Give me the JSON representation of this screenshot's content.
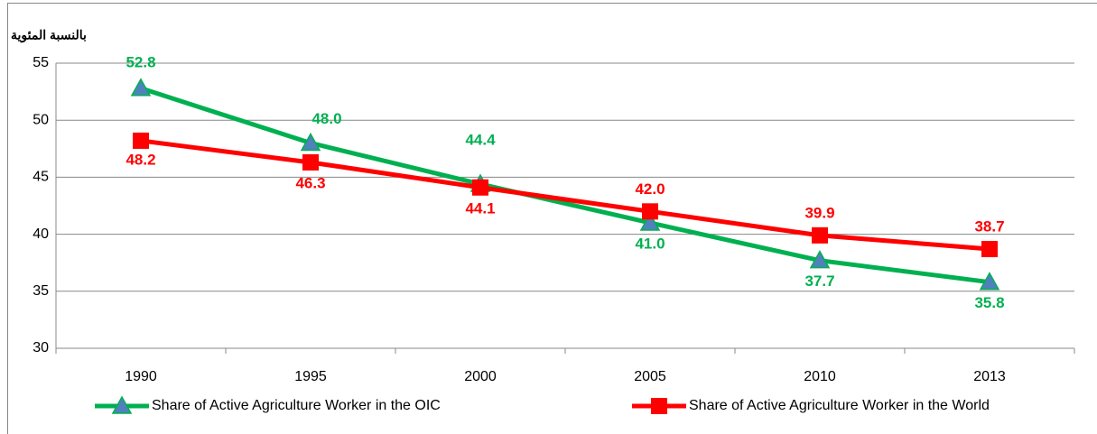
{
  "chart_data": {
    "type": "line",
    "y_label": "بالنسبة المئوية",
    "categories": [
      "1990",
      "1995",
      "2000",
      "2005",
      "2010",
      "2013"
    ],
    "series": [
      {
        "name": "Share of Active Agriculture Worker in the OIC",
        "color": "#00b050",
        "marker": "triangle",
        "values": [
          52.8,
          48.0,
          44.4,
          41.0,
          37.7,
          35.8
        ],
        "value_labels": [
          "52.8",
          "48.0",
          "44.4",
          "41.0",
          "37.7",
          "35.8"
        ]
      },
      {
        "name": "Share of Active Agriculture Worker in the World",
        "color": "#ff0000",
        "marker": "square",
        "values": [
          48.2,
          46.3,
          44.1,
          42.0,
          39.9,
          38.7
        ],
        "value_labels": [
          "48.2",
          "46.3",
          "44.1",
          "42.0",
          "39.9",
          "38.7"
        ]
      }
    ],
    "ylim": [
      30,
      55
    ],
    "yticks": [
      30,
      35,
      40,
      45,
      50,
      55
    ],
    "grid": true,
    "legend": "bottom"
  }
}
